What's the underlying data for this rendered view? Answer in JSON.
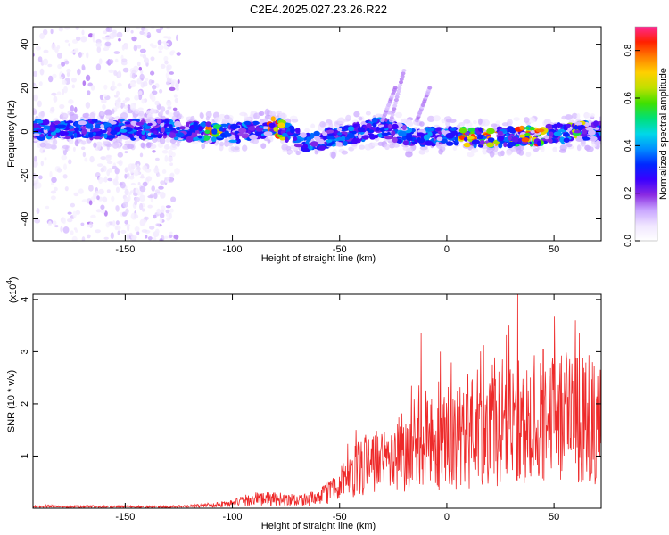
{
  "title": "C2E4.2025.027.23.26.R22",
  "colors": {
    "snr_line": "#ee2a2a",
    "axis": "#000000",
    "colormap": [
      "#ffffff",
      "#f0e6ff",
      "#c9a6ff",
      "#8a2be2",
      "#3a00ff",
      "#0028ff",
      "#0090ff",
      "#00d8e8",
      "#00e078",
      "#40e000",
      "#c0e000",
      "#ffd000",
      "#ff8000",
      "#ff2000",
      "#ff2890"
    ]
  },
  "chart_data": [
    {
      "type": "heatmap",
      "title": "C2E4.2025.027.23.26.R22",
      "xlabel": "Height of straight line (km)",
      "ylabel": "Frequency (Hz)",
      "xlim": [
        -193,
        72
      ],
      "ylim": [
        -50,
        48
      ],
      "xticks": [
        -150,
        -100,
        -50,
        0,
        50
      ],
      "xtick_labels": [
        "-150",
        "-100",
        "-50",
        "0",
        "50"
      ],
      "yticks": [
        -40,
        -20,
        0,
        20,
        40
      ],
      "ytick_labels": [
        "-40",
        "-20",
        "0",
        "20",
        "40"
      ],
      "colorbar": {
        "label": "Normalized spectral amplitude",
        "range": [
          0.0,
          0.9
        ],
        "ticks": [
          0.0,
          0.2,
          0.4,
          0.6,
          0.8
        ],
        "tick_labels": [
          "0.0",
          "0.2",
          "0.4",
          "0.6",
          "0.8"
        ]
      },
      "band_center_hz": [
        {
          "x": -193,
          "y": 1
        },
        {
          "x": -150,
          "y": 1
        },
        {
          "x": -130,
          "y": 1
        },
        {
          "x": -100,
          "y": -1
        },
        {
          "x": -80,
          "y": 2
        },
        {
          "x": -65,
          "y": -5
        },
        {
          "x": -50,
          "y": -2
        },
        {
          "x": -30,
          "y": 2
        },
        {
          "x": -15,
          "y": -3
        },
        {
          "x": 0,
          "y": -2
        },
        {
          "x": 20,
          "y": -3
        },
        {
          "x": 40,
          "y": -2
        },
        {
          "x": 60,
          "y": 0
        },
        {
          "x": 72,
          "y": 0
        }
      ],
      "band_halfwidth_hz": 4,
      "noisy_region_x": [
        -193,
        -125
      ],
      "peak_amplitude_x": [
        -110,
        -80,
        10,
        20,
        35,
        43,
        60
      ]
    },
    {
      "type": "line",
      "xlabel": "Height of straight line (km)",
      "ylabel": "SNR (10 * v/v)",
      "y_multiplier_label": "(x10",
      "y_multiplier_exponent": "4",
      "y_multiplier_close": ")",
      "xlim": [
        -193,
        72
      ],
      "ylim": [
        0,
        4.1
      ],
      "xticks": [
        -150,
        -100,
        -50,
        0,
        50
      ],
      "xtick_labels": [
        "-150",
        "-100",
        "-50",
        "0",
        "50"
      ],
      "yticks": [
        1,
        2,
        3,
        4
      ],
      "ytick_labels": [
        "1",
        "2",
        "3",
        "4"
      ],
      "series": [
        {
          "envelope": [
            {
              "x": -193,
              "y": 0.04
            },
            {
              "x": -140,
              "y": 0.03
            },
            {
              "x": -120,
              "y": 0.04
            },
            {
              "x": -100,
              "y": 0.1
            },
            {
              "x": -90,
              "y": 0.2
            },
            {
              "x": -70,
              "y": 0.18
            },
            {
              "x": -60,
              "y": 0.2
            },
            {
              "x": -50,
              "y": 0.5
            },
            {
              "x": -40,
              "y": 0.85
            },
            {
              "x": -30,
              "y": 1.0
            },
            {
              "x": -20,
              "y": 1.2
            },
            {
              "x": -10,
              "y": 1.25
            },
            {
              "x": 0,
              "y": 1.4
            },
            {
              "x": 10,
              "y": 1.5
            },
            {
              "x": 20,
              "y": 1.6
            },
            {
              "x": 30,
              "y": 1.7
            },
            {
              "x": 40,
              "y": 1.8
            },
            {
              "x": 50,
              "y": 1.9
            },
            {
              "x": 60,
              "y": 1.8
            },
            {
              "x": 72,
              "y": 1.8
            }
          ],
          "spikes": [
            {
              "x": 33,
              "y": 4.1
            },
            {
              "x": 60,
              "y": 3.6
            },
            {
              "x": -12,
              "y": 3.35
            },
            {
              "x": -3,
              "y": 3.0
            },
            {
              "x": 29,
              "y": 3.5
            },
            {
              "x": 45,
              "y": 3.05
            },
            {
              "x": 26,
              "y": 2.85
            },
            {
              "x": 68,
              "y": 2.8
            }
          ]
        }
      ]
    }
  ]
}
